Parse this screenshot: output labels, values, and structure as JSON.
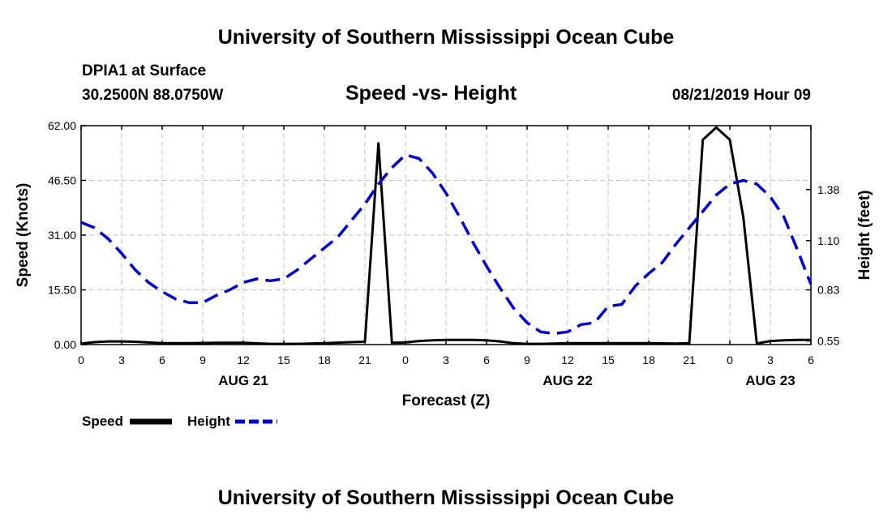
{
  "page": {
    "title_top": "University of Southern Mississippi Ocean Cube",
    "title_bottom": "University of Southern Mississippi Ocean Cube",
    "station": "DPIA1 at Surface",
    "location": "30.2500N 88.0750W",
    "chart_title": "Speed -vs- Height",
    "date": "08/21/2019 Hour 09"
  },
  "colors": {
    "speed": "#000000",
    "height": "#0000cc",
    "grid": "#c0c0c0"
  },
  "chart_data": {
    "type": "line",
    "title": "Speed -vs- Height",
    "xlabel": "Forecast (Z)",
    "ylabel": "Speed (Knots)",
    "y2label": "Height (feet)",
    "xlim": [
      0,
      54
    ],
    "ylim": [
      0,
      62
    ],
    "y2lim": [
      0.53,
      1.73
    ],
    "x_ticks": [
      0,
      3,
      6,
      9,
      12,
      15,
      18,
      21,
      24,
      27,
      30,
      33,
      36,
      39,
      42,
      45,
      48,
      51,
      54
    ],
    "x_tick_labels": [
      "0",
      "3",
      "6",
      "9",
      "12",
      "15",
      "18",
      "21",
      "0",
      "3",
      "6",
      "9",
      "12",
      "15",
      "18",
      "21",
      "0",
      "3",
      "6"
    ],
    "y_ticks": [
      0,
      15.5,
      31,
      46.5,
      62
    ],
    "y_tick_labels": [
      "0.00",
      "15.50",
      "31.00",
      "46.50",
      "62.00"
    ],
    "y2_ticks": [
      0.55,
      0.83,
      1.1,
      1.38
    ],
    "y2_tick_labels": [
      "0.55",
      "0.83",
      "1.10",
      "1.38"
    ],
    "date_labels": [
      {
        "x": 12,
        "label": "AUG 21"
      },
      {
        "x": 36,
        "label": "AUG 22"
      },
      {
        "x": 51,
        "label": "AUG 23"
      }
    ],
    "legend": {
      "position": "bottom-left",
      "items": [
        {
          "name": "Speed",
          "style": "solid"
        },
        {
          "name": "Height",
          "style": "dashed"
        }
      ]
    },
    "series": [
      {
        "name": "Speed",
        "axis": "left",
        "x": [
          0,
          1,
          2,
          3,
          4,
          5,
          6,
          8,
          10,
          12,
          14,
          15,
          16,
          18,
          20,
          21,
          22,
          23,
          24,
          25,
          26,
          27,
          28,
          29,
          30,
          31,
          32,
          33,
          34,
          35,
          36,
          38,
          40,
          42,
          44,
          45,
          46,
          47,
          48,
          49,
          50,
          51,
          52,
          53,
          54
        ],
        "values": [
          0.3,
          0.7,
          0.9,
          0.9,
          0.8,
          0.6,
          0.4,
          0.4,
          0.5,
          0.5,
          0.2,
          0.2,
          0.2,
          0.4,
          0.7,
          0.8,
          57,
          0.5,
          0.6,
          1.0,
          1.2,
          1.3,
          1.3,
          1.3,
          1.2,
          0.9,
          0.4,
          0.2,
          0.2,
          0.3,
          0.4,
          0.4,
          0.4,
          0.4,
          0.3,
          0.4,
          58,
          61.5,
          58,
          36,
          0.3,
          1.0,
          1.2,
          1.3,
          1.3
        ]
      },
      {
        "name": "Height",
        "axis": "right",
        "x": [
          0,
          1,
          2,
          3,
          4,
          5,
          6,
          7,
          8,
          9,
          10,
          11,
          12,
          13,
          14,
          15,
          16,
          17,
          18,
          19,
          20,
          21,
          22,
          23,
          24,
          25,
          26,
          27,
          28,
          29,
          30,
          31,
          32,
          33,
          34,
          35,
          36,
          37,
          38,
          39,
          40,
          41,
          42,
          43,
          44,
          45,
          46,
          47,
          48,
          49,
          50,
          51,
          52,
          53,
          54
        ],
        "values": [
          1.2,
          1.17,
          1.11,
          1.03,
          0.94,
          0.87,
          0.82,
          0.78,
          0.76,
          0.76,
          0.8,
          0.83,
          0.87,
          0.89,
          0.88,
          0.89,
          0.94,
          1.0,
          1.06,
          1.12,
          1.21,
          1.3,
          1.41,
          1.5,
          1.57,
          1.55,
          1.47,
          1.36,
          1.23,
          1.09,
          0.96,
          0.84,
          0.73,
          0.65,
          0.6,
          0.59,
          0.6,
          0.64,
          0.65,
          0.74,
          0.75,
          0.85,
          0.92,
          0.98,
          1.08,
          1.17,
          1.26,
          1.35,
          1.41,
          1.43,
          1.41,
          1.34,
          1.23,
          1.05,
          0.86
        ]
      }
    ]
  }
}
